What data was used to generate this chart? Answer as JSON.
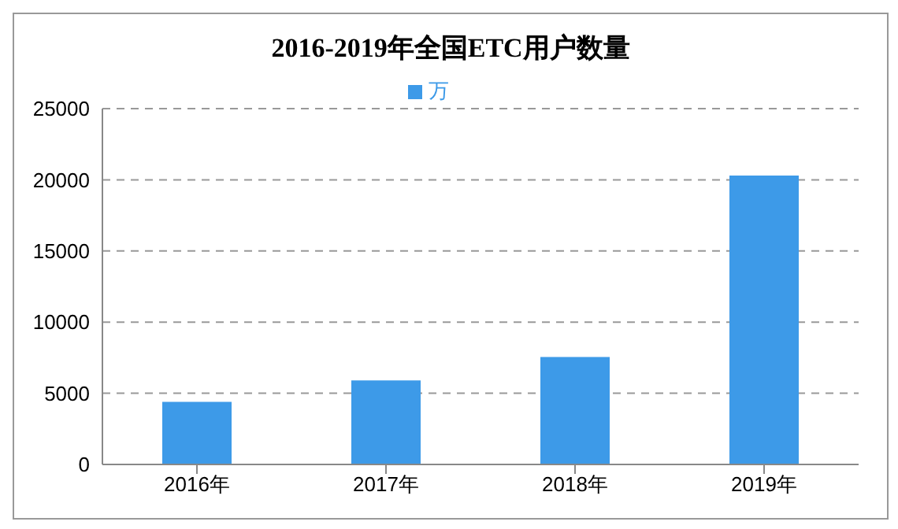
{
  "chart_data": {
    "type": "bar",
    "title": "2016-2019年全国ETC用户数量",
    "categories": [
      "2016年",
      "2017年",
      "2018年",
      "2019年"
    ],
    "series": [
      {
        "name": "万",
        "color": "#3d9ae8",
        "values": [
          4400,
          5900,
          7550,
          20300
        ]
      }
    ],
    "ylim": [
      0,
      25000
    ],
    "yticks": [
      0,
      5000,
      10000,
      15000,
      20000,
      25000
    ],
    "grid": "y",
    "legend": "top"
  }
}
